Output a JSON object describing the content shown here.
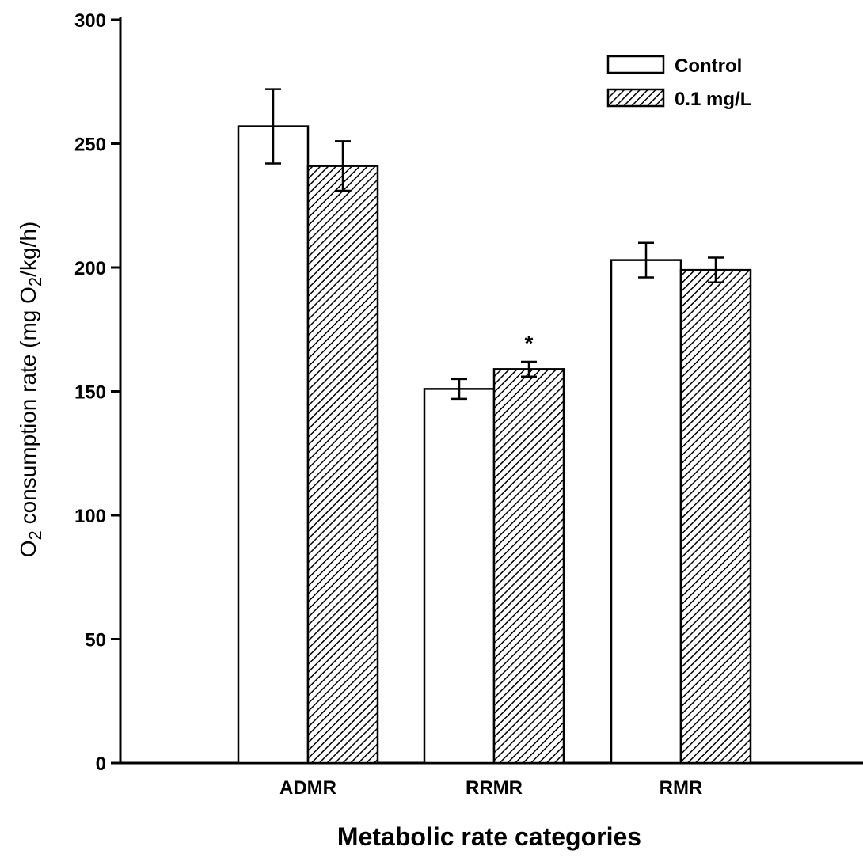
{
  "chart_data": {
    "type": "bar",
    "categories": [
      "ADMR",
      "RRMR",
      "RMR"
    ],
    "series": [
      {
        "name": "Control",
        "fill": "open",
        "values": [
          257,
          151,
          203
        ],
        "errors": [
          15,
          4,
          7
        ]
      },
      {
        "name": "0.1 mg/L",
        "fill": "hatched",
        "values": [
          241,
          159,
          199
        ],
        "errors": [
          10,
          3,
          5
        ]
      }
    ],
    "y_ticks": [
      0,
      50,
      100,
      150,
      200,
      250,
      300
    ],
    "ylim": [
      0,
      300
    ],
    "xlabel": "Metabolic rate categories",
    "ylabel_prefix": "O",
    "ylabel_sub1": "2",
    "ylabel_mid": " consumption rate (mg O",
    "ylabel_sub2": "2",
    "ylabel_suffix": "/kg/h)",
    "annotations": [
      {
        "category": "RRMR",
        "series": 1,
        "text": "*"
      }
    ],
    "legend_position": "top-right",
    "grid": false,
    "colors": {
      "bar_outline": "#000000",
      "open_fill": "#ffffff",
      "hatch": "#000000"
    }
  }
}
